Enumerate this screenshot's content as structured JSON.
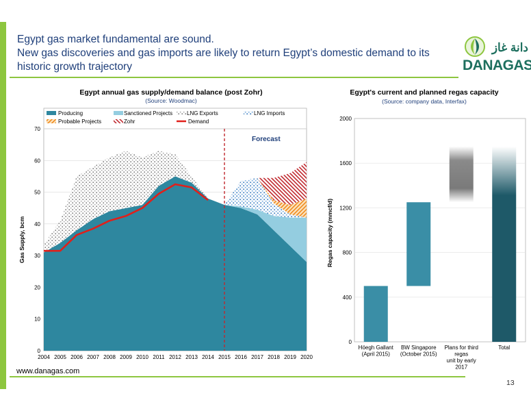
{
  "slide": {
    "title_lines": [
      "Egypt gas market fundamental are sound.",
      "New gas discoveries and gas imports are likely to return Egypt’s domestic demand to its",
      "historic growth trajectory"
    ],
    "logo_text": "DANAGAS",
    "logo_arabic": "دانة غاز",
    "footer_url": "www.danagas.com",
    "page_number": "13",
    "colors": {
      "accent_green": "#8dc63f",
      "title_blue": "#1f3f7a",
      "brand_teal": "#1d6f5e"
    }
  },
  "chart_data": [
    {
      "type": "area",
      "title": "Egypt annual gas supply/demand balance (post Zohr)",
      "subtitle": "(Source: Woodmac)",
      "xlabel": "",
      "ylabel": "Gas Supply, bcm",
      "x": [
        2004,
        2005,
        2006,
        2007,
        2008,
        2009,
        2010,
        2011,
        2012,
        2013,
        2014,
        2015,
        2016,
        2017,
        2018,
        2019,
        2020
      ],
      "xlim": [
        2004,
        2020
      ],
      "ylim": [
        0,
        70
      ],
      "yticks": [
        0,
        10,
        20,
        30,
        40,
        50,
        60,
        70
      ],
      "grid": true,
      "legend": "top",
      "annotation": "Forecast",
      "forecast_start": 2015,
      "stacked": true,
      "series": [
        {
          "name": "Producing",
          "values": [
            31,
            34,
            38,
            41.5,
            44,
            45,
            46,
            52,
            55,
            53,
            48,
            46,
            45,
            43,
            38,
            33,
            28
          ],
          "color": "#2e879f"
        },
        {
          "name": "Sanctioned Projects",
          "values": [
            0,
            0,
            0,
            0,
            0,
            0,
            0,
            0,
            0,
            0,
            0,
            0,
            0.5,
            1.5,
            4.5,
            9,
            14
          ],
          "color": "#94cde0"
        },
        {
          "name": "LNG Exports",
          "values": [
            2.5,
            7,
            17,
            16.5,
            17,
            18,
            15,
            11,
            7,
            2,
            0,
            0,
            0,
            0,
            0,
            0,
            0
          ],
          "color": "#c8c8c8"
        },
        {
          "name": "LNG Imports",
          "values": [
            0,
            0,
            0,
            0,
            0,
            0,
            0,
            0,
            0,
            0,
            0,
            0,
            8,
            10,
            4,
            1,
            0
          ],
          "color": "#8fb4d8"
        },
        {
          "name": "Probable Projects",
          "values": [
            0,
            0,
            0,
            0,
            0,
            0,
            0,
            0,
            0,
            0,
            0,
            0,
            0,
            0,
            1,
            3,
            6
          ],
          "color": "#f2a33a"
        },
        {
          "name": "Zohr",
          "values": [
            0,
            0,
            0,
            0,
            0,
            0,
            0,
            0,
            0,
            0,
            0,
            0,
            0,
            0,
            7,
            10,
            11.5
          ],
          "color": "#c0282e"
        }
      ],
      "demand": {
        "name": "Demand",
        "values": [
          31.5,
          31.5,
          36.5,
          38.5,
          41,
          42.5,
          45,
          49.5,
          52.5,
          51.5,
          47.5,
          null,
          null,
          null,
          null,
          null,
          null
        ],
        "color": "#e0201b"
      }
    },
    {
      "type": "bar",
      "title": "Egypt's current and planned regas capacity",
      "subtitle": "(Source: company data, Interfax)",
      "xlabel": "",
      "ylabel": "Regas capacity (mmcf/d)",
      "categories": [
        "Höegh Gallant (April 2015)",
        "BW Singapore (October 2015)",
        "Plans for third regas unit by early 2017",
        "Total"
      ],
      "bar_base": [
        0,
        500,
        1250,
        0
      ],
      "bar_top": [
        500,
        1250,
        1750,
        1750
      ],
      "ylim": [
        0,
        2000
      ],
      "yticks": [
        0,
        400,
        800,
        1200,
        1600,
        2000
      ],
      "grid": true,
      "colors": [
        "#3a8ea6",
        "#3a8ea6",
        "#7f7f7f",
        "#1e5968"
      ]
    }
  ]
}
